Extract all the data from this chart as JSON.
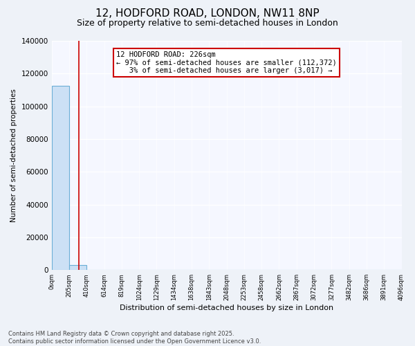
{
  "title": "12, HODFORD ROAD, LONDON, NW11 8NP",
  "subtitle": "Size of property relative to semi-detached houses in London",
  "xlabel": "Distribution of semi-detached houses by size in London",
  "ylabel": "Number of semi-detached properties",
  "bar_values": [
    112372,
    3017,
    0,
    0,
    0,
    0,
    0,
    0,
    0,
    0,
    0,
    0,
    0,
    0,
    0,
    0,
    0,
    0,
    0,
    0
  ],
  "bar_color": "#cce0f5",
  "bar_edge_color": "#6aaed6",
  "categories": [
    "0sqm",
    "205sqm",
    "410sqm",
    "614sqm",
    "819sqm",
    "1024sqm",
    "1229sqm",
    "1434sqm",
    "1638sqm",
    "1843sqm",
    "2048sqm",
    "2253sqm",
    "2458sqm",
    "2662sqm",
    "2867sqm",
    "3072sqm",
    "3277sqm",
    "3482sqm",
    "3686sqm",
    "3891sqm",
    "4096sqm"
  ],
  "annotation_text": "12 HODFORD ROAD: 226sqm\n← 97% of semi-detached houses are smaller (112,372)\n   3% of semi-detached houses are larger (3,017) →",
  "vline_color": "#cc0000",
  "vline_x": 1.07,
  "ylim": [
    0,
    140000
  ],
  "yticks": [
    0,
    20000,
    40000,
    60000,
    80000,
    100000,
    120000,
    140000
  ],
  "footnote": "Contains HM Land Registry data © Crown copyright and database right 2025.\nContains public sector information licensed under the Open Government Licence v3.0.",
  "bg_color": "#eef2f8",
  "plot_bg_color": "#f5f7ff",
  "title_fontsize": 11,
  "subtitle_fontsize": 9,
  "annotation_fontsize": 7.5,
  "annotation_box_color": "#ffffff",
  "annotation_box_edge": "#cc0000"
}
